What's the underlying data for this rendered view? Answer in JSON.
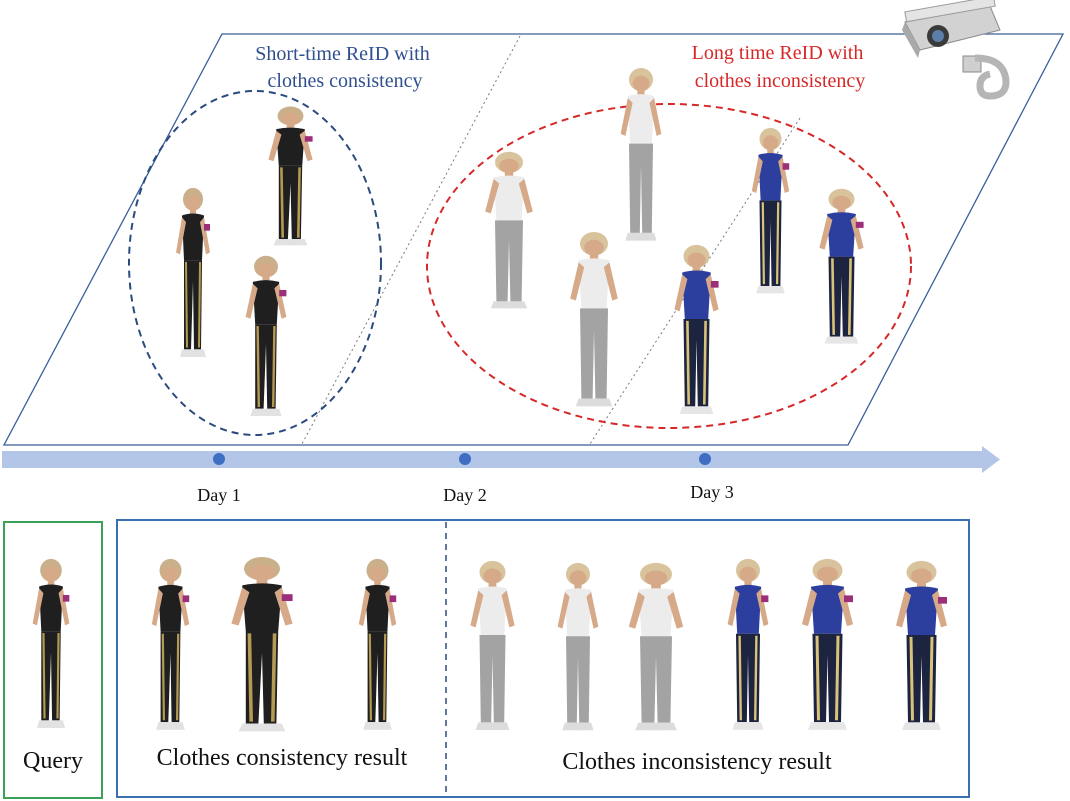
{
  "top_panel": {
    "short_time_label": [
      "Short-time ReID with",
      "clothes consistency"
    ],
    "long_time_label": [
      "Long time ReID with",
      "clothes inconsistency"
    ]
  },
  "timeline": {
    "days": [
      "Day 1",
      "Day 2",
      "Day 3"
    ]
  },
  "bottom_panel": {
    "query_label": "Query",
    "consistency_label": "Clothes consistency result",
    "inconsistency_label": "Clothes inconsistency result"
  },
  "icons": {
    "camera": "security-camera-icon",
    "person": "walking-person-figure"
  },
  "colors": {
    "blue_text": "#2f4f8f",
    "red_text": "#d62828",
    "blue_ellipse": "#2a4a80",
    "red_ellipse": "#d62828",
    "panel_border": "#3a5f9a",
    "query_border": "#3aa05a",
    "timeline": "#b4c6e7",
    "timeline_dot": "#3e6fc4",
    "outfit_black": "#1f1f1f",
    "outfit_white": "#e9e9e9",
    "outfit_blue": "#2d3f9e",
    "pants_gray": "#a3a3a3",
    "pants_navy": "#1c2440",
    "skin": "#d6a989",
    "hair": "#c9b08a"
  }
}
